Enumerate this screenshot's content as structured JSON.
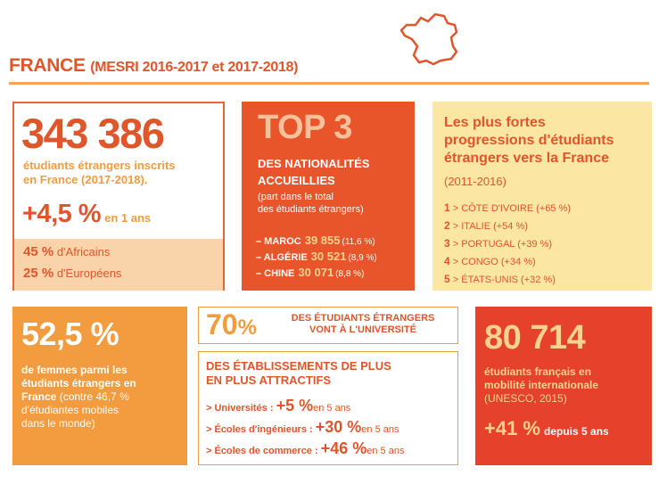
{
  "header": {
    "title": "FRANCE",
    "subtitle": "(MESRI 2016-2017 et 2017-2018)"
  },
  "students": {
    "count": "343 386",
    "line1": "étudiants étrangers inscrits",
    "line2": "en France (2017-2018).",
    "growth": "+4,5 %",
    "growth_period": "en 1 ans",
    "africans_pct": "45 %",
    "africans_label": "d'Africains",
    "europeans_pct": "25 %",
    "europeans_label": "d'Européens"
  },
  "top3": {
    "title": "TOP 3",
    "line1": "DES NATIONALITÉS",
    "line2": "ACCUEILLIES",
    "note1": "(part dans le total",
    "note2": "des étudiants étrangers)",
    "items": [
      {
        "country": "– MAROC",
        "value": "39 855",
        "pct": "(11,6 %)"
      },
      {
        "country": "– ALGÉRIE",
        "value": "30 521",
        "pct": "(8,9 %)"
      },
      {
        "country": "– CHINE",
        "value": "30 071",
        "pct": "(8,8 %)"
      }
    ]
  },
  "progressions": {
    "title1": "Les plus fortes",
    "title2": "progressions d'étudiants",
    "title3": "étrangers vers la France",
    "period": "(2011-2016)",
    "items": [
      {
        "rank": "1",
        "label": "> CÔTE D'IVOIRE (+65 %)"
      },
      {
        "rank": "2",
        "label": "> ITALIE (+54 %)"
      },
      {
        "rank": "3",
        "label": "> PORTUGAL (+39 %)"
      },
      {
        "rank": "4",
        "label": "> CONGO (+34 %)"
      },
      {
        "rank": "5",
        "label": "> ÉTATS-UNIS (+32 %)"
      }
    ]
  },
  "women": {
    "pct": "52,5 %",
    "line1": "de femmes parmi les",
    "line2": "étudiants étrangers en",
    "line3_bold": "France",
    "line3_rest": " (contre 46,7 %",
    "line4": "d'étudiantes mobiles",
    "line5": "dans le monde)"
  },
  "university": {
    "pct": "70",
    "pct_sign": "%",
    "line1": "DES ÉTUDIANTS ÉTRANGERS",
    "line2": "VONT À L'UNIVERSITÉ"
  },
  "establishments": {
    "title1": "DES ÉTABLISSEMENTS DE PLUS",
    "title2": "EN PLUS ATTRACTIFS",
    "items": [
      {
        "label": "> Universités :",
        "value": "+5 %",
        "period": "en 5 ans"
      },
      {
        "label": "> Écoles d'ingénieurs :",
        "value": "+30 %",
        "period": "en 5 ans"
      },
      {
        "label": "> Écoles de commerce :",
        "value": "+46 %",
        "period": "en 5 ans"
      }
    ]
  },
  "mobility": {
    "count": "80 714",
    "line1": "étudiants français en",
    "line2": "mobilité internationale",
    "line3": "(UNESCO, 2015)",
    "growth": "+41 %",
    "growth_period": "depuis 5 ans"
  },
  "colors": {
    "primary_orange": "#e1552a",
    "light_orange": "#f39c3d",
    "peach": "#f9d3aa",
    "yellow": "#fbe6a4",
    "red": "#e6412b"
  }
}
